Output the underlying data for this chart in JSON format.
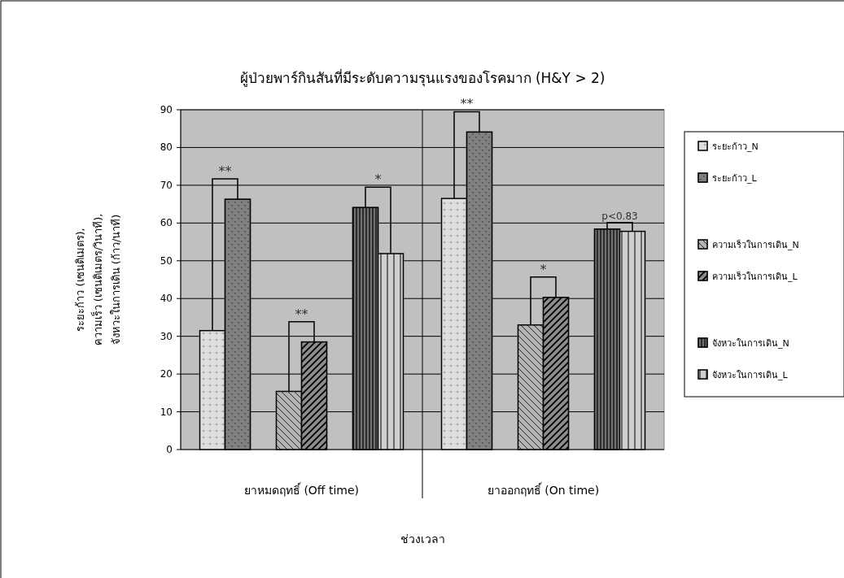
{
  "chart_data": {
    "type": "bar",
    "title": "ผู้ป่วยพาร์กินสันที่มีระดับความรุนแรงของโรคมาก (H&Y > 2)",
    "xlabel": "ช่วงเวลา",
    "ylabel": "ระยะก้าว (เซนติเมตร),\nความเร็ว (เซนติเมตร/วินาที),\nจังหวะในการเดิน (ก้าว/นาที)",
    "categories": [
      "ยาหมดฤทธิ์ (Off time)",
      "ยาออกฤทธิ์ (On time)"
    ],
    "series": [
      {
        "name": "ระยะก้าว_N",
        "color": "#dedede",
        "values": [
          31.5,
          66.5
        ]
      },
      {
        "name": "ระยะก้าว_L",
        "color": "#808080",
        "values": [
          66.3,
          84.1
        ]
      },
      {
        "name": "ความเร็วในการเดิน_N",
        "color": "#b4b4b4",
        "values": [
          15.4,
          33.0
        ]
      },
      {
        "name": "ความเร็วในการเดิน_L",
        "color": "#8c8c8c",
        "values": [
          28.5,
          40.3
        ]
      },
      {
        "name": "จังหวะในการเดิน_N",
        "color": "#707070",
        "values": [
          64.1,
          58.4
        ]
      },
      {
        "name": "จังหวะในการเดิน_L",
        "color": "#d0d0d0",
        "values": [
          51.9,
          57.8
        ]
      }
    ],
    "ylim": [
      0,
      90
    ],
    "yticks": [
      0,
      10,
      20,
      30,
      40,
      50,
      60,
      70,
      80,
      90
    ],
    "grid": "y",
    "legend": "right",
    "annotations": [
      "**",
      "**",
      "*",
      "**",
      "*",
      "p<0.83"
    ]
  }
}
